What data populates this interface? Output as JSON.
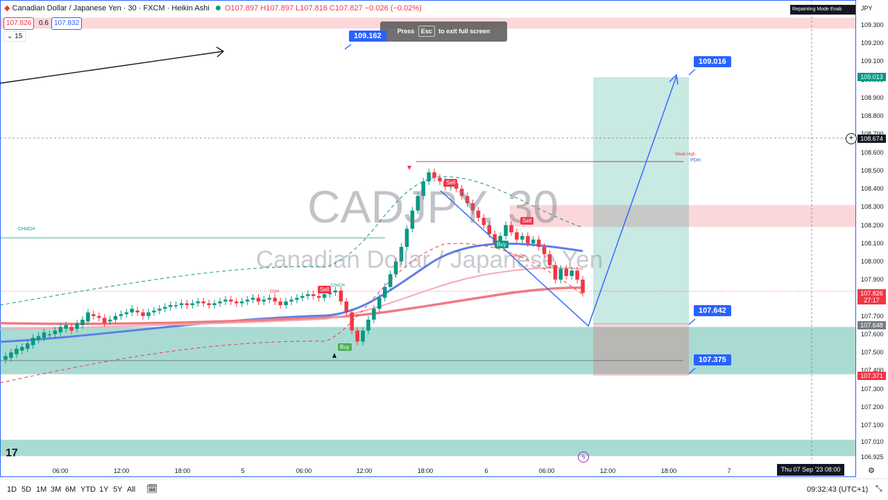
{
  "legend": {
    "symbol_title": "Canadian Dollar / Japanese Yen · 30 · FXCM · Heikin Ashi",
    "ohlc": "O107.897 H107.897 L107.816 C107.827 −0.026 (−0.02%)",
    "sell_price": "107.826",
    "spread": "0.6",
    "buy_price": "107.832",
    "indicator_count": "15"
  },
  "currency": "JPY",
  "repaint_notice": "Repainting Mode Enab",
  "esc_hint": {
    "pre": "Press",
    "key": "Esc",
    "post": "to exit full screen"
  },
  "watermark": {
    "symbol": "CADJPY, 30",
    "name": "Canadian Dollar / Japanese Yen"
  },
  "price_axis": [
    "109.300",
    "109.200",
    "109.100",
    "109.000",
    "108.900",
    "108.800",
    "108.700",
    "108.600",
    "108.500",
    "108.400",
    "108.300",
    "108.200",
    "108.100",
    "108.000",
    "107.900",
    "107.800",
    "107.700",
    "107.600",
    "107.500",
    "107.400",
    "107.300",
    "107.200",
    "107.100",
    "107.010",
    "106.925"
  ],
  "price_tags": {
    "target": "109.013",
    "crosshair": "108.674",
    "current": "107.826",
    "countdown": "27:17",
    "entry": "107.648",
    "stop": "107.371"
  },
  "callouts": {
    "top_left": "109.162",
    "target": "109.016",
    "entry": "107.642",
    "stop": "107.375"
  },
  "signals": {
    "sell1": "Sell",
    "sell2": "Sell",
    "sell3": "Sell",
    "buy1": "Buy",
    "buy2": "Buy"
  },
  "annotations": {
    "choch": "CHoCH",
    "pdh": "PDH",
    "weak_high": "Weak High",
    "eqh": "EQH",
    "choch_small": "ChoCH",
    "choch_small2": "ChoCH"
  },
  "time_axis": [
    "06:00",
    "12:00",
    "18:00",
    "5",
    "06:00",
    "12:00",
    "18:00",
    "6",
    "06:00",
    "12:00",
    "18:00",
    "7"
  ],
  "crosshair_date": "Thu 07 Sep '23   08:00",
  "ranges": [
    "1D",
    "5D",
    "1M",
    "3M",
    "6M",
    "YTD",
    "1Y",
    "5Y",
    "All"
  ],
  "clock": "09:32:43 (UTC+1)",
  "logo": "17",
  "colors": {
    "up": "#089981",
    "down": "#f23645",
    "accent": "#2962ff"
  },
  "chart_data": {
    "type": "candlestick",
    "style": "Heikin Ashi",
    "interval": "30",
    "ylim": [
      106.925,
      109.36
    ],
    "candles": [
      {
        "o": 107.46,
        "c": 107.48
      },
      {
        "o": 107.47,
        "c": 107.5
      },
      {
        "o": 107.49,
        "c": 107.52
      },
      {
        "o": 107.51,
        "c": 107.53
      },
      {
        "o": 107.52,
        "c": 107.55
      },
      {
        "o": 107.54,
        "c": 107.58
      },
      {
        "o": 107.57,
        "c": 107.59
      },
      {
        "o": 107.58,
        "c": 107.61
      },
      {
        "o": 107.6,
        "c": 107.6
      },
      {
        "o": 107.6,
        "c": 107.62
      },
      {
        "o": 107.61,
        "c": 107.64
      },
      {
        "o": 107.63,
        "c": 107.65
      },
      {
        "o": 107.64,
        "c": 107.62
      },
      {
        "o": 107.63,
        "c": 107.66
      },
      {
        "o": 107.65,
        "c": 107.68
      },
      {
        "o": 107.67,
        "c": 107.72
      },
      {
        "o": 107.71,
        "c": 107.7
      },
      {
        "o": 107.7,
        "c": 107.69
      },
      {
        "o": 107.69,
        "c": 107.66
      },
      {
        "o": 107.67,
        "c": 107.68
      },
      {
        "o": 107.68,
        "c": 107.7
      },
      {
        "o": 107.7,
        "c": 107.71
      },
      {
        "o": 107.71,
        "c": 107.72
      },
      {
        "o": 107.72,
        "c": 107.74
      },
      {
        "o": 107.73,
        "c": 107.72
      },
      {
        "o": 107.72,
        "c": 107.7
      },
      {
        "o": 107.7,
        "c": 107.72
      },
      {
        "o": 107.72,
        "c": 107.73
      },
      {
        "o": 107.73,
        "c": 107.74
      },
      {
        "o": 107.74,
        "c": 107.75
      },
      {
        "o": 107.75,
        "c": 107.76
      },
      {
        "o": 107.76,
        "c": 107.76
      },
      {
        "o": 107.76,
        "c": 107.77
      },
      {
        "o": 107.77,
        "c": 107.76
      },
      {
        "o": 107.76,
        "c": 107.77
      },
      {
        "o": 107.77,
        "c": 107.78
      },
      {
        "o": 107.78,
        "c": 107.77
      },
      {
        "o": 107.77,
        "c": 107.76
      },
      {
        "o": 107.76,
        "c": 107.77
      },
      {
        "o": 107.77,
        "c": 107.78
      },
      {
        "o": 107.78,
        "c": 107.79
      },
      {
        "o": 107.79,
        "c": 107.78
      },
      {
        "o": 107.78,
        "c": 107.77
      },
      {
        "o": 107.77,
        "c": 107.78
      },
      {
        "o": 107.78,
        "c": 107.79
      },
      {
        "o": 107.79,
        "c": 107.8
      },
      {
        "o": 107.8,
        "c": 107.78
      },
      {
        "o": 107.78,
        "c": 107.79
      },
      {
        "o": 107.79,
        "c": 107.8
      },
      {
        "o": 107.8,
        "c": 107.78
      },
      {
        "o": 107.78,
        "c": 107.76
      },
      {
        "o": 107.76,
        "c": 107.78
      },
      {
        "o": 107.78,
        "c": 107.79
      },
      {
        "o": 107.79,
        "c": 107.8
      },
      {
        "o": 107.8,
        "c": 107.81
      },
      {
        "o": 107.81,
        "c": 107.82
      },
      {
        "o": 107.82,
        "c": 107.81
      },
      {
        "o": 107.81,
        "c": 107.8
      },
      {
        "o": 107.8,
        "c": 107.82
      },
      {
        "o": 107.82,
        "c": 107.83
      },
      {
        "o": 107.83,
        "c": 107.84
      },
      {
        "o": 107.84,
        "c": 107.78
      },
      {
        "o": 107.78,
        "c": 107.72
      },
      {
        "o": 107.72,
        "c": 107.62
      },
      {
        "o": 107.62,
        "c": 107.56
      },
      {
        "o": 107.56,
        "c": 107.62
      },
      {
        "o": 107.62,
        "c": 107.68
      },
      {
        "o": 107.68,
        "c": 107.74
      },
      {
        "o": 107.74,
        "c": 107.8
      },
      {
        "o": 107.8,
        "c": 107.86
      },
      {
        "o": 107.86,
        "c": 107.93
      },
      {
        "o": 107.93,
        "c": 108.0
      },
      {
        "o": 108.0,
        "c": 108.08
      },
      {
        "o": 108.08,
        "c": 108.18
      },
      {
        "o": 108.18,
        "c": 108.28
      },
      {
        "o": 108.28,
        "c": 108.36
      },
      {
        "o": 108.36,
        "c": 108.44
      },
      {
        "o": 108.44,
        "c": 108.49
      },
      {
        "o": 108.49,
        "c": 108.46
      },
      {
        "o": 108.46,
        "c": 108.44
      },
      {
        "o": 108.44,
        "c": 108.41
      },
      {
        "o": 108.41,
        "c": 108.43
      },
      {
        "o": 108.43,
        "c": 108.4
      },
      {
        "o": 108.4,
        "c": 108.36
      },
      {
        "o": 108.36,
        "c": 108.32
      },
      {
        "o": 108.32,
        "c": 108.28
      },
      {
        "o": 108.28,
        "c": 108.24
      },
      {
        "o": 108.24,
        "c": 108.2
      },
      {
        "o": 108.2,
        "c": 108.15
      },
      {
        "o": 108.15,
        "c": 108.1
      },
      {
        "o": 108.1,
        "c": 108.14
      },
      {
        "o": 108.14,
        "c": 108.2
      },
      {
        "o": 108.2,
        "c": 108.16
      },
      {
        "o": 108.16,
        "c": 108.12
      },
      {
        "o": 108.12,
        "c": 108.14
      },
      {
        "o": 108.14,
        "c": 108.1
      },
      {
        "o": 108.1,
        "c": 108.12
      },
      {
        "o": 108.12,
        "c": 108.08
      },
      {
        "o": 108.08,
        "c": 108.04
      },
      {
        "o": 108.04,
        "c": 107.98
      },
      {
        "o": 107.98,
        "c": 107.9
      },
      {
        "o": 107.9,
        "c": 107.96
      },
      {
        "o": 107.96,
        "c": 107.92
      },
      {
        "o": 107.92,
        "c": 107.95
      },
      {
        "o": 107.95,
        "c": 107.9
      },
      {
        "o": 107.9,
        "c": 107.827
      }
    ],
    "zones": [
      {
        "kind": "supply",
        "top": 109.34,
        "bottom": 109.28
      },
      {
        "kind": "supply",
        "top": 108.31,
        "bottom": 108.19
      },
      {
        "kind": "demand",
        "top": 107.64,
        "bottom": 107.38
      },
      {
        "kind": "demand",
        "top": 107.02,
        "bottom": 106.93
      }
    ],
    "position": {
      "entry": 107.648,
      "target": 109.013,
      "stop": 107.371
    }
  }
}
